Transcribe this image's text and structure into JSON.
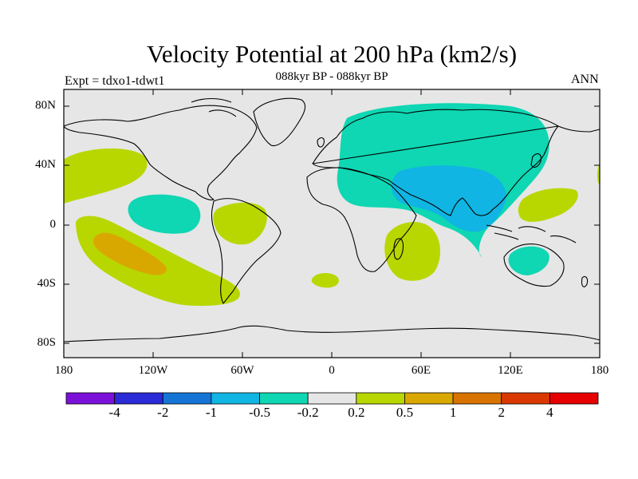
{
  "title": "Velocity Potential at 200 hPa (km2/s)",
  "subtitle": "088kyr BP - 088kyr BP",
  "left_label": "Expt = tdxo1-tdwt1",
  "right_label": "ANN",
  "lat_labels": [
    "80N",
    "40N",
    "0",
    "40S",
    "80S"
  ],
  "lon_labels": [
    "180",
    "120W",
    "60W",
    "0",
    "60E",
    "120E",
    "180"
  ],
  "colorbar": {
    "labels": [
      "-4",
      "-2",
      "-1",
      "-0.5",
      "-0.2",
      "0.2",
      "0.5",
      "1",
      "2",
      "4"
    ],
    "colors": [
      "#7b11d9",
      "#2a2ad6",
      "#1575d6",
      "#10b5e3",
      "#0fd6b3",
      "#e6e6e6",
      "#b8d700",
      "#d9a800",
      "#d97300",
      "#d93900",
      "#e60000"
    ]
  },
  "colors": {
    "ocean_background": "#e6e6e6",
    "coastline": "#000000"
  }
}
